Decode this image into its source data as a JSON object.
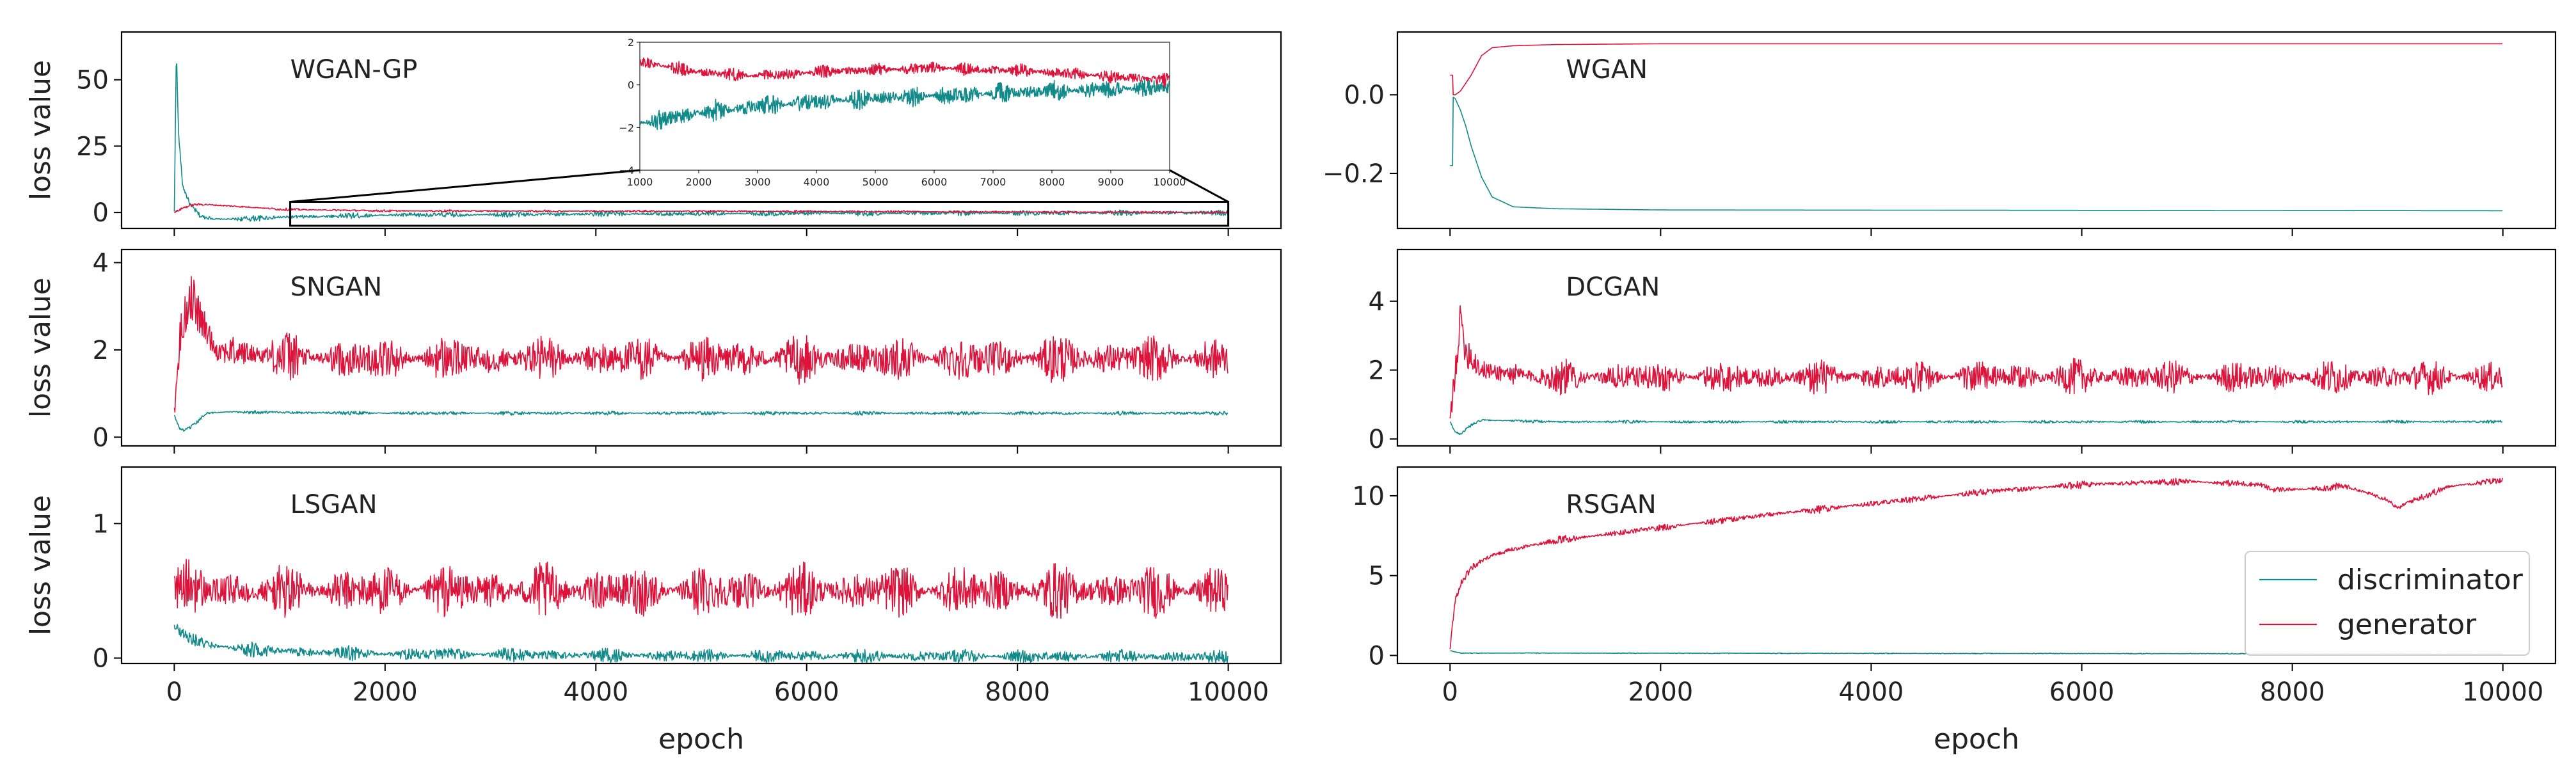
{
  "colors": {
    "discriminator": "#138a8a",
    "generator": "#dc143c"
  },
  "chart_data": [
    {
      "type": "line",
      "title": "WGAN-GP",
      "xlabel": "",
      "ylabel": "loss value",
      "xlim": [
        -500,
        10500
      ],
      "ylim": [
        -6,
        68
      ],
      "xticks": [
        "0",
        "2000",
        "4000",
        "6000",
        "8000",
        "10000"
      ],
      "show_xticks": false,
      "yticks": [
        {
          "v": 0,
          "label": "0"
        },
        {
          "v": 25,
          "label": "25"
        },
        {
          "v": 50,
          "label": "50"
        }
      ],
      "series": [
        {
          "name": "discriminator",
          "x": [
            0,
            20,
            40,
            80,
            150,
            250,
            400,
            600,
            1000,
            2000,
            4000,
            6000,
            8000,
            10000
          ],
          "y": [
            0,
            62,
            30,
            10,
            3,
            -1.5,
            -2.5,
            -2.5,
            -1.8,
            -1.0,
            -0.6,
            -0.3,
            -0.2,
            -0.1
          ],
          "noise": 1.2
        },
        {
          "name": "generator",
          "x": [
            0,
            100,
            200,
            300,
            500,
            800,
            1000,
            2000,
            4000,
            6000,
            8000,
            10000
          ],
          "y": [
            0,
            2,
            3,
            3,
            2.5,
            1.8,
            1.2,
            0.6,
            0.5,
            0.4,
            0.2,
            0
          ],
          "noise": 0.5
        }
      ],
      "zoom_box": {
        "x": [
          1100,
          10000
        ],
        "y": [
          -5,
          4
        ]
      },
      "inset": {
        "xlim": [
          1000,
          10000
        ],
        "ylim": [
          -4,
          2
        ],
        "xticks": [
          "1000",
          "2000",
          "3000",
          "4000",
          "5000",
          "6000",
          "7000",
          "8000",
          "9000",
          "10000"
        ],
        "yticks": [
          {
            "v": -4,
            "label": "−4"
          },
          {
            "v": -2,
            "label": "−2"
          },
          {
            "v": 0,
            "label": "0"
          },
          {
            "v": 2,
            "label": "2"
          }
        ],
        "series": [
          {
            "name": "discriminator",
            "x": [
              1000,
              2000,
              3000,
              4000,
              5000,
              6000,
              7000,
              8000,
              9000,
              10000
            ],
            "y": [
              -1.8,
              -1.3,
              -1.0,
              -0.8,
              -0.6,
              -0.5,
              -0.4,
              -0.3,
              -0.2,
              -0.1
            ],
            "noise": 0.55
          },
          {
            "name": "generator",
            "x": [
              1000,
              2000,
              3000,
              4000,
              5000,
              6000,
              7000,
              8000,
              9000,
              10000
            ],
            "y": [
              1.1,
              0.6,
              0.4,
              0.6,
              0.7,
              0.8,
              0.7,
              0.6,
              0.4,
              0.2
            ],
            "noise": 0.35
          }
        ]
      }
    },
    {
      "type": "line",
      "title": "WGAN",
      "xlabel": "",
      "ylabel": "",
      "xlim": [
        -500,
        10500
      ],
      "ylim": [
        -0.34,
        0.16
      ],
      "xticks": [
        "0",
        "2000",
        "4000",
        "6000",
        "8000",
        "10000"
      ],
      "show_xticks": false,
      "yticks": [
        {
          "v": 0,
          "label": "0.0"
        },
        {
          "v": -0.2,
          "label": "−0.2"
        }
      ],
      "series": [
        {
          "name": "discriminator",
          "x": [
            0,
            50,
            100,
            150,
            200,
            300,
            400,
            600,
            1000,
            2000,
            10000
          ],
          "y": [
            0,
            -0.01,
            -0.04,
            -0.08,
            -0.13,
            -0.21,
            -0.26,
            -0.285,
            -0.29,
            -0.293,
            -0.295
          ],
          "noise": 0.0,
          "spike": {
            "x": 2,
            "y": -0.18
          }
        },
        {
          "name": "generator",
          "x": [
            0,
            50,
            100,
            200,
            300,
            400,
            600,
            1000,
            2000,
            10000
          ],
          "y": [
            0,
            0.0,
            0.01,
            0.05,
            0.1,
            0.12,
            0.125,
            0.128,
            0.13,
            0.13
          ],
          "noise": 0.0,
          "spike": {
            "x": 2,
            "y": 0.05
          }
        }
      ]
    },
    {
      "type": "line",
      "title": "SNGAN",
      "xlabel": "",
      "ylabel": "loss value",
      "xlim": [
        -500,
        10500
      ],
      "ylim": [
        -0.2,
        4.3
      ],
      "xticks": [
        "0",
        "2000",
        "4000",
        "6000",
        "8000",
        "10000"
      ],
      "show_xticks": false,
      "yticks": [
        {
          "v": 0,
          "label": "0"
        },
        {
          "v": 2,
          "label": "2"
        },
        {
          "v": 4,
          "label": "4"
        }
      ],
      "series": [
        {
          "name": "discriminator",
          "x": [
            0,
            50,
            100,
            200,
            300,
            500,
            2000,
            10000
          ],
          "y": [
            0.5,
            0.2,
            0.15,
            0.3,
            0.55,
            0.58,
            0.55,
            0.55
          ],
          "noise": 0.05
        },
        {
          "name": "generator",
          "x": [
            0,
            50,
            150,
            250,
            400,
            800,
            1500,
            2000,
            3000,
            4000,
            6000,
            8000,
            10000
          ],
          "y": [
            0.5,
            2.2,
            3.3,
            2.7,
            2.0,
            1.9,
            1.8,
            1.8,
            1.8,
            1.8,
            1.8,
            1.8,
            1.8
          ],
          "noise": 0.6
        }
      ]
    },
    {
      "type": "line",
      "title": "DCGAN",
      "xlabel": "",
      "ylabel": "",
      "xlim": [
        -500,
        10500
      ],
      "ylim": [
        -0.2,
        5.5
      ],
      "xticks": [
        "0",
        "2000",
        "4000",
        "6000",
        "8000",
        "10000"
      ],
      "show_xticks": false,
      "yticks": [
        {
          "v": 0,
          "label": "0"
        },
        {
          "v": 2,
          "label": "2"
        },
        {
          "v": 4,
          "label": "4"
        }
      ],
      "series": [
        {
          "name": "discriminator",
          "x": [
            0,
            50,
            100,
            200,
            300,
            1000,
            10000
          ],
          "y": [
            0.5,
            0.2,
            0.15,
            0.4,
            0.55,
            0.5,
            0.5
          ],
          "noise": 0.05
        },
        {
          "name": "generator",
          "x": [
            0,
            50,
            100,
            150,
            300,
            800,
            2000,
            4000,
            6000,
            8000,
            10000
          ],
          "y": [
            0.5,
            2.0,
            3.5,
            2.6,
            2.0,
            1.8,
            1.8,
            1.8,
            1.8,
            1.8,
            1.8
          ],
          "noise": 0.55
        }
      ]
    },
    {
      "type": "line",
      "title": "LSGAN",
      "xlabel": "epoch",
      "ylabel": "loss value",
      "xlim": [
        -500,
        10500
      ],
      "ylim": [
        -0.04,
        1.42
      ],
      "xticks": [
        "0",
        "2000",
        "4000",
        "6000",
        "8000",
        "10000"
      ],
      "show_xticks": true,
      "yticks": [
        {
          "v": 0,
          "label": "0"
        },
        {
          "v": 1,
          "label": "1"
        }
      ],
      "series": [
        {
          "name": "discriminator",
          "x": [
            0,
            50,
            150,
            300,
            600,
            1000,
            2000,
            4000,
            10000
          ],
          "y": [
            0.25,
            0.2,
            0.15,
            0.1,
            0.07,
            0.05,
            0.03,
            0.02,
            0.01
          ],
          "noise": 0.06
        },
        {
          "name": "generator",
          "x": [
            0,
            100,
            300,
            1000,
            3000,
            6000,
            10000
          ],
          "y": [
            0.5,
            0.55,
            0.5,
            0.5,
            0.5,
            0.5,
            0.5
          ],
          "noise": 0.22
        }
      ]
    },
    {
      "type": "line",
      "title": "RSGAN",
      "xlabel": "epoch",
      "ylabel": "",
      "xlim": [
        -500,
        10500
      ],
      "ylim": [
        -0.5,
        11.8
      ],
      "xticks": [
        "0",
        "2000",
        "4000",
        "6000",
        "8000",
        "10000"
      ],
      "show_xticks": true,
      "yticks": [
        {
          "v": 0,
          "label": "0"
        },
        {
          "v": 5,
          "label": "5"
        },
        {
          "v": 10,
          "label": "10"
        }
      ],
      "legend": {
        "position": "lower-right",
        "entries": [
          "discriminator",
          "generator"
        ]
      },
      "series": [
        {
          "name": "discriminator",
          "x": [
            0,
            100,
            10000
          ],
          "y": [
            0.3,
            0.15,
            0.1
          ],
          "noise": 0.03
        },
        {
          "name": "generator",
          "x": [
            0,
            50,
            100,
            200,
            400,
            700,
            1000,
            1500,
            2000,
            3000,
            4000,
            5000,
            6000,
            7000,
            7700,
            7800,
            8100,
            8500,
            8900,
            9000,
            9100,
            9500,
            10000
          ],
          "y": [
            0.5,
            3.5,
            4.5,
            5.5,
            6.3,
            6.8,
            7.2,
            7.6,
            8.0,
            8.8,
            9.5,
            10.2,
            10.7,
            10.9,
            10.7,
            10.4,
            10.4,
            10.6,
            9.8,
            9.2,
            9.6,
            10.6,
            11.0
          ],
          "noise": 0.25
        }
      ]
    }
  ]
}
